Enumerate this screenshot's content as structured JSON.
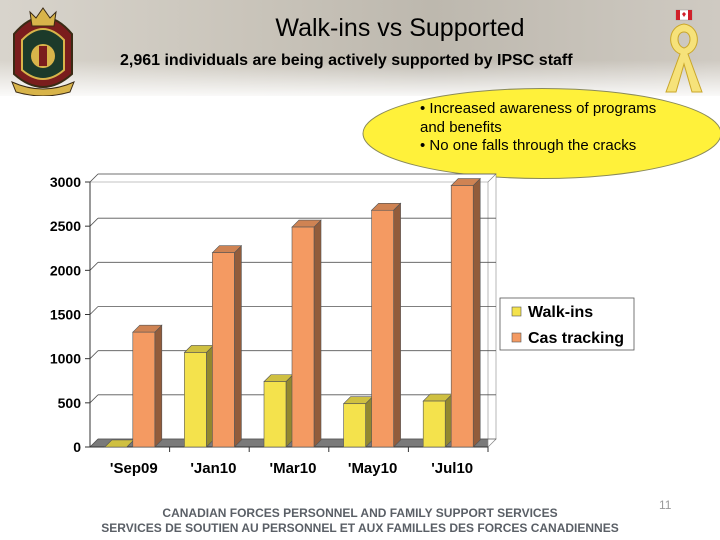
{
  "slide": {
    "title": "Walk-ins vs Supported",
    "subtitle": "2,961 individuals are being actively supported by IPSC staff",
    "callout_lines": [
      "• Increased awareness of programs",
      "and benefits",
      "• No one falls through the cracks"
    ],
    "page_number": "11",
    "footer_en": "CANADIAN FORCES PERSONNEL AND FAMILY SUPPORT SERVICES",
    "footer_fr": "SERVICES DE SOUTIEN AU PERSONNEL ET AUX FAMILLES DES FORCES CANADIENNES"
  },
  "colors": {
    "walk_ins": "#f4e24c",
    "cas_tracking": "#f49a62",
    "callout_fill": "#fff13a"
  },
  "chart_data": {
    "type": "bar",
    "categories": [
      "'Sep09",
      "'Jan10",
      "'Mar10",
      "'May10",
      "'Jul10"
    ],
    "series": [
      {
        "name": "Walk-ins",
        "values": [
          0,
          1070,
          740,
          490,
          520
        ]
      },
      {
        "name": "Cas tracking",
        "values": [
          1300,
          2200,
          2490,
          2680,
          2960
        ]
      }
    ],
    "ylim": [
      0,
      3000
    ],
    "yticks": [
      "0",
      "500",
      "1000",
      "1500",
      "2000",
      "2500",
      "3000"
    ],
    "legend_position": "right",
    "style": "3d-clustered-bar"
  }
}
